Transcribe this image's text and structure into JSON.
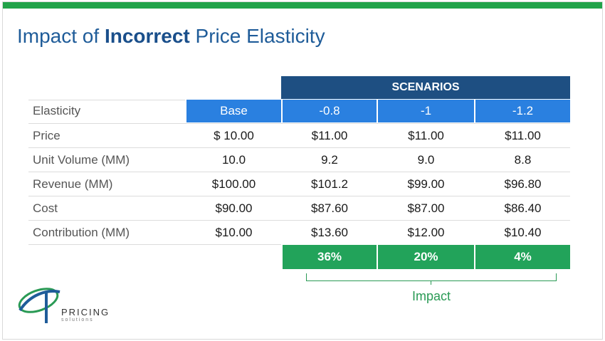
{
  "title": {
    "prefix": "Impact of ",
    "bold": "Incorrect",
    "suffix": " Price Elasticity"
  },
  "scenarios_label": "SCENARIOS",
  "columns": [
    "Base",
    "-0.8",
    "-1",
    "-1.2"
  ],
  "row_header": "Elasticity",
  "rows": [
    {
      "label": "Price",
      "values": [
        "$ 10.00",
        "$11.00",
        "$11.00",
        "$11.00"
      ]
    },
    {
      "label": "Unit Volume (MM)",
      "values": [
        "10.0",
        "9.2",
        "9.0",
        "8.8"
      ]
    },
    {
      "label": "Revenue (MM)",
      "values": [
        "$100.00",
        "$101.2",
        "$99.00",
        "$96.80"
      ]
    },
    {
      "label": "Cost",
      "values": [
        "$90.00",
        "$87.60",
        "$87.00",
        "$86.40"
      ]
    },
    {
      "label": "Contribution (MM)",
      "values": [
        "$10.00",
        "$13.60",
        "$12.00",
        "$10.40"
      ]
    }
  ],
  "impact_values": [
    "36%",
    "20%",
    "4%"
  ],
  "impact_label": "Impact",
  "logo": {
    "line1": "PRICING",
    "line2": "solutions"
  },
  "colors": {
    "accent_green": "#22a34a",
    "header_navy": "#1e4f82",
    "header_blue": "#2a80e0",
    "impact_green": "#22a35a"
  }
}
